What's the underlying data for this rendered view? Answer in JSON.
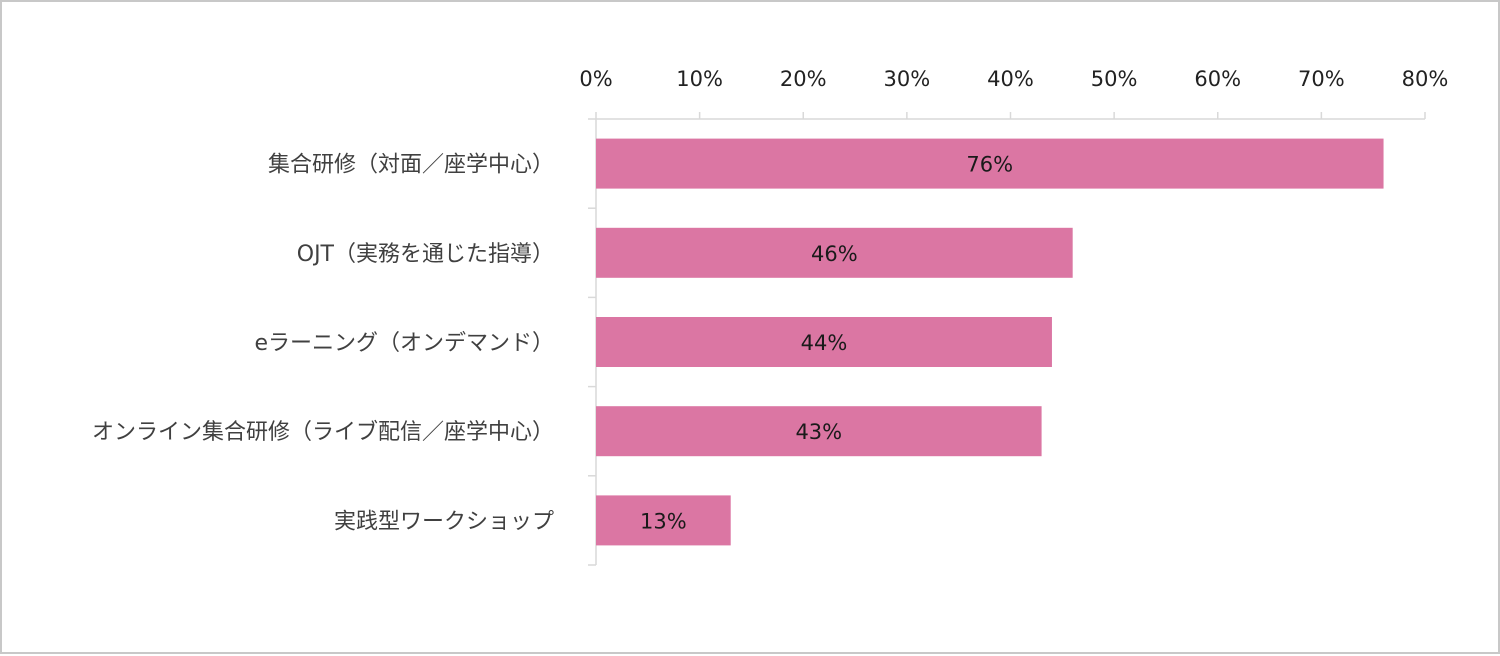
{
  "chart_data": {
    "type": "bar",
    "orientation": "horizontal",
    "title": "",
    "xlabel": "",
    "ylabel": "",
    "categories": [
      "集合研修（対面／座学中心）",
      "OJT（実務を通じた指導）",
      "eラーニング（オンデマンド）",
      "オンライン集合研修（ライブ配信／座学中心）",
      "実践型ワークショップ"
    ],
    "values": [
      76,
      46,
      44,
      43,
      13
    ],
    "data_labels": [
      "76%",
      "46%",
      "44%",
      "43%",
      "13%"
    ],
    "xlim": [
      0,
      80
    ],
    "x_ticks": [
      0,
      10,
      20,
      30,
      40,
      50,
      60,
      70,
      80
    ],
    "x_tick_labels": [
      "0%",
      "10%",
      "20%",
      "30%",
      "40%",
      "50%",
      "60%",
      "70%",
      "80%"
    ],
    "axis_position": "top",
    "grid": false,
    "legend": "none",
    "bar_color": "#db76a3",
    "axis_color": "#d9d9d9"
  }
}
